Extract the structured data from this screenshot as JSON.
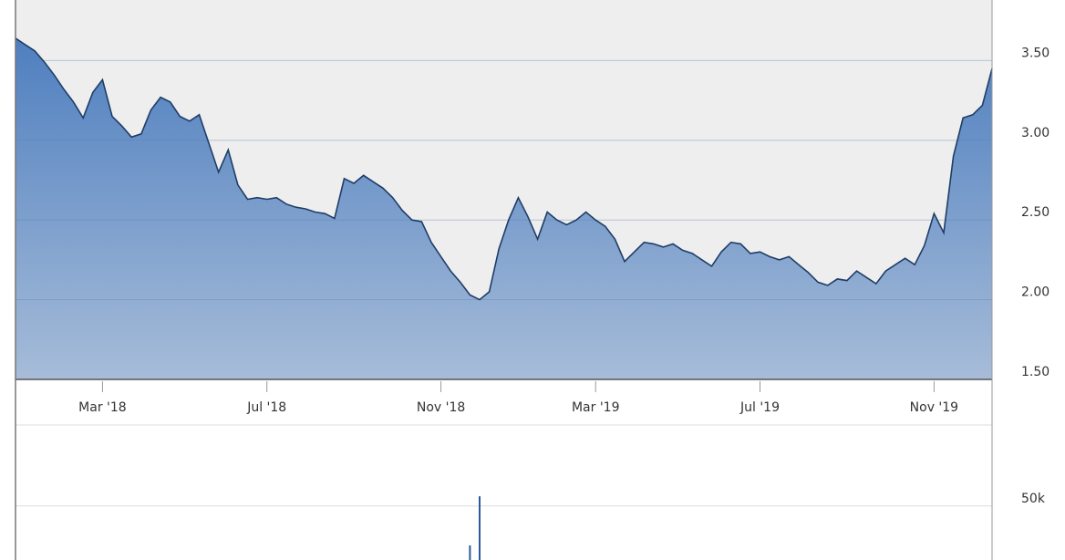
{
  "chart_data": [
    {
      "type": "area",
      "categories": [
        null,
        null,
        null,
        null,
        null,
        null,
        null,
        null,
        null,
        "Mar '18",
        null,
        null,
        null,
        null,
        null,
        null,
        null,
        null,
        null,
        null,
        null,
        null,
        null,
        null,
        null,
        null,
        "Jul '18",
        null,
        null,
        null,
        null,
        null,
        null,
        null,
        null,
        null,
        null,
        null,
        null,
        null,
        null,
        null,
        null,
        null,
        "Nov '18",
        null,
        null,
        null,
        null,
        null,
        null,
        null,
        null,
        null,
        null,
        null,
        null,
        null,
        null,
        null,
        "Mar '19",
        null,
        null,
        null,
        null,
        null,
        null,
        null,
        null,
        null,
        null,
        null,
        null,
        null,
        null,
        null,
        null,
        "Jul '19",
        null,
        null,
        null,
        null,
        null,
        null,
        null,
        null,
        null,
        null,
        null,
        null,
        null,
        null,
        null,
        null,
        null,
        "Nov '19",
        null,
        null,
        null,
        null,
        null,
        null
      ],
      "values": [
        3.64,
        3.6,
        3.56,
        3.49,
        3.41,
        3.32,
        3.24,
        3.14,
        3.3,
        3.38,
        3.15,
        3.09,
        3.02,
        3.04,
        3.19,
        3.27,
        3.24,
        3.15,
        3.12,
        3.16,
        2.98,
        2.8,
        2.94,
        2.72,
        2.63,
        2.64,
        2.63,
        2.64,
        2.6,
        2.58,
        2.57,
        2.55,
        2.54,
        2.51,
        2.76,
        2.73,
        2.78,
        2.74,
        2.7,
        2.64,
        2.56,
        2.5,
        2.49,
        2.36,
        2.27,
        2.18,
        2.11,
        2.03,
        2.0,
        2.05,
        2.32,
        2.5,
        2.64,
        2.52,
        2.38,
        2.55,
        2.5,
        2.47,
        2.5,
        2.55,
        2.5,
        2.46,
        2.38,
        2.24,
        2.3,
        2.36,
        2.35,
        2.33,
        2.35,
        2.31,
        2.29,
        2.25,
        2.21,
        2.3,
        2.36,
        2.35,
        2.29,
        2.3,
        2.27,
        2.25,
        2.27,
        2.22,
        2.17,
        2.11,
        2.09,
        2.13,
        2.12,
        2.18,
        2.14,
        2.1,
        2.18,
        2.22,
        2.26,
        2.22,
        2.34,
        2.54,
        2.42,
        2.9,
        3.14,
        3.16,
        3.22,
        3.45
      ],
      "color": "#4f7fbf",
      "line_color": "#1f3d66",
      "ylim": [
        1.5,
        3.88
      ],
      "yticks": [
        {
          "value": 1.5,
          "label": "1.50"
        },
        {
          "value": 2,
          "label": "2.00"
        },
        {
          "value": 2.5,
          "label": "2.50"
        },
        {
          "value": 3,
          "label": "3.00"
        },
        {
          "value": 3.5,
          "label": "3.50"
        }
      ],
      "grid": true
    },
    {
      "type": "bar",
      "values": [
        0,
        0,
        0,
        0,
        0,
        0,
        0,
        0,
        0,
        0,
        0,
        0,
        0,
        0,
        0,
        0,
        0,
        0,
        0,
        0,
        0,
        0,
        0,
        0,
        0,
        0,
        0,
        0,
        0,
        0,
        0,
        0,
        0,
        0,
        0,
        0,
        0,
        0,
        0,
        0,
        0,
        0,
        0,
        0,
        0,
        0,
        0,
        13500,
        59000,
        0,
        0,
        0,
        0,
        0,
        0,
        0,
        0,
        0,
        0,
        0,
        0,
        0,
        0,
        0,
        0,
        0,
        0,
        0,
        0,
        0,
        0,
        0,
        0,
        0,
        0,
        0,
        0,
        0,
        0,
        0,
        0,
        0,
        0,
        0,
        0,
        0,
        0,
        0,
        0,
        0,
        0,
        0,
        0,
        0,
        0,
        0,
        0,
        0,
        0,
        0,
        0,
        0
      ],
      "color": "#2a5a9a",
      "ylim": [
        0,
        125000
      ],
      "yticks": [
        {
          "value": 50000,
          "label": "50k"
        }
      ],
      "grid": true
    }
  ]
}
